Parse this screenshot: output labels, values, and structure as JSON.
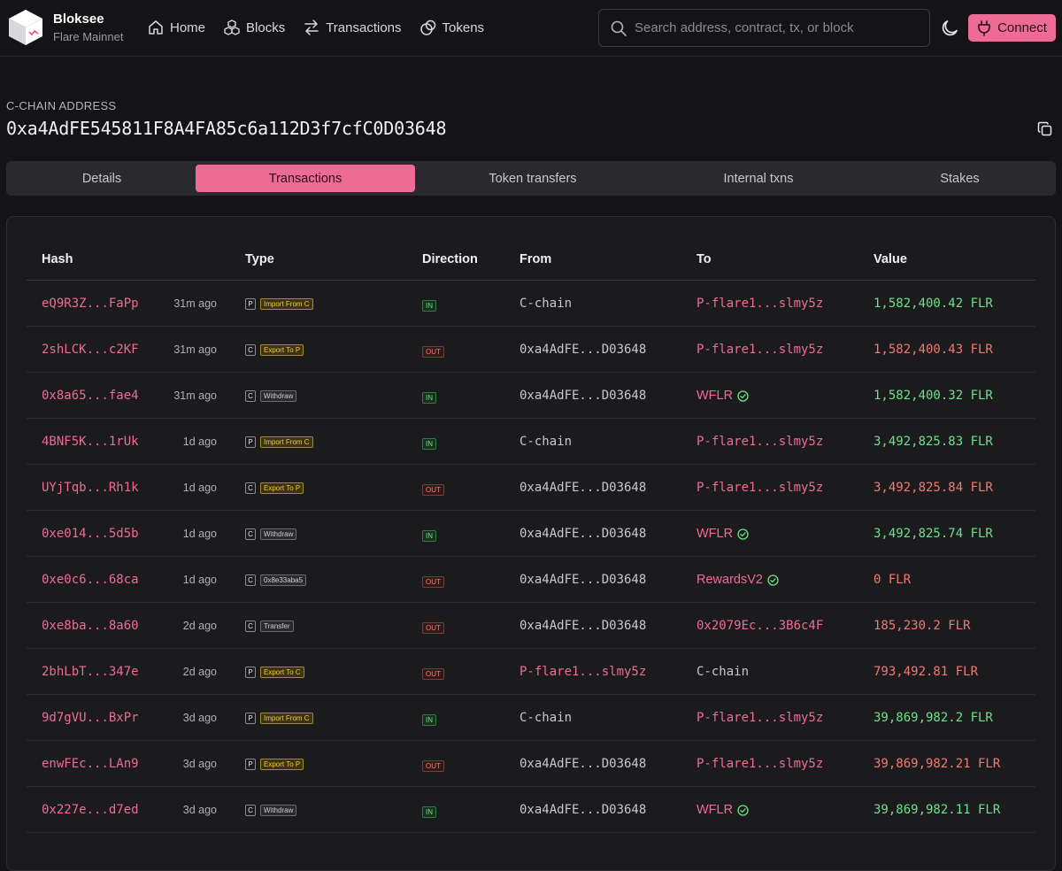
{
  "brand": {
    "name": "Bloksee",
    "network": "Flare Mainnet"
  },
  "nav": [
    {
      "label": "Home",
      "icon": "home-icon"
    },
    {
      "label": "Blocks",
      "icon": "blocks-icon"
    },
    {
      "label": "Transactions",
      "icon": "transactions-icon"
    },
    {
      "label": "Tokens",
      "icon": "tokens-icon"
    }
  ],
  "search": {
    "placeholder": "Search address, contract, tx, or block",
    "value": ""
  },
  "connect_label": "Connect",
  "address": {
    "label": "C-CHAIN ADDRESS",
    "value": "0xa4AdFE545811F8A4FA85c6a112D3f7cfC0D03648"
  },
  "tabs": [
    {
      "label": "Details",
      "active": false
    },
    {
      "label": "Transactions",
      "active": true
    },
    {
      "label": "Token transfers",
      "active": false
    },
    {
      "label": "Internal txns",
      "active": false
    },
    {
      "label": "Stakes",
      "active": false
    }
  ],
  "table": {
    "headers": {
      "hash": "Hash",
      "type": "Type",
      "direction": "Direction",
      "from": "From",
      "to": "To",
      "value": "Value"
    },
    "rows": [
      {
        "hash": "eQ9R3Z...FaPp",
        "age": "31m ago",
        "chain": "P",
        "type": "Import From C",
        "type_style": "gold",
        "direction": "IN",
        "from": "C-chain",
        "from_style": "plain",
        "to": "P-flare1...slmy5z",
        "to_style": "pink",
        "to_verified": false,
        "value": "1,582,400.42 FLR"
      },
      {
        "hash": "2shLCK...c2KF",
        "age": "31m ago",
        "chain": "C",
        "type": "Export To P",
        "type_style": "gold",
        "direction": "OUT",
        "from": "0xa4AdFE...D03648",
        "from_style": "plain",
        "to": "P-flare1...slmy5z",
        "to_style": "pink",
        "to_verified": false,
        "value": "1,582,400.43 FLR"
      },
      {
        "hash": "0x8a65...fae4",
        "age": "31m ago",
        "chain": "C",
        "type": "Withdraw",
        "type_style": "gray",
        "direction": "IN",
        "from": "0xa4AdFE...D03648",
        "from_style": "plain",
        "to": "WFLR",
        "to_style": "pink-sans",
        "to_verified": true,
        "value": "1,582,400.32 FLR"
      },
      {
        "hash": "4BNF5K...1rUk",
        "age": "1d ago",
        "chain": "P",
        "type": "Import From C",
        "type_style": "gold",
        "direction": "IN",
        "from": "C-chain",
        "from_style": "plain",
        "to": "P-flare1...slmy5z",
        "to_style": "pink",
        "to_verified": false,
        "value": "3,492,825.83 FLR"
      },
      {
        "hash": "UYjTqb...Rh1k",
        "age": "1d ago",
        "chain": "C",
        "type": "Export To P",
        "type_style": "gold",
        "direction": "OUT",
        "from": "0xa4AdFE...D03648",
        "from_style": "plain",
        "to": "P-flare1...slmy5z",
        "to_style": "pink",
        "to_verified": false,
        "value": "3,492,825.84 FLR"
      },
      {
        "hash": "0xe014...5d5b",
        "age": "1d ago",
        "chain": "C",
        "type": "Withdraw",
        "type_style": "gray",
        "direction": "IN",
        "from": "0xa4AdFE...D03648",
        "from_style": "plain",
        "to": "WFLR",
        "to_style": "pink-sans",
        "to_verified": true,
        "value": "3,492,825.74 FLR"
      },
      {
        "hash": "0xe0c6...68ca",
        "age": "1d ago",
        "chain": "C",
        "type": "0x8e33aba5",
        "type_style": "gray",
        "direction": "OUT",
        "from": "0xa4AdFE...D03648",
        "from_style": "plain",
        "to": "RewardsV2",
        "to_style": "pink-sans",
        "to_verified": true,
        "value": "0 FLR"
      },
      {
        "hash": "0xe8ba...8a60",
        "age": "2d ago",
        "chain": "C",
        "type": "Transfer",
        "type_style": "gray",
        "direction": "OUT",
        "from": "0xa4AdFE...D03648",
        "from_style": "plain",
        "to": "0x2079Ec...3B6c4F",
        "to_style": "pink",
        "to_verified": false,
        "value": "185,230.2 FLR"
      },
      {
        "hash": "2bhLbT...347e",
        "age": "2d ago",
        "chain": "P",
        "type": "Export To C",
        "type_style": "gold",
        "direction": "OUT",
        "from": "P-flare1...slmy5z",
        "from_style": "pink",
        "to": "C-chain",
        "to_style": "plain",
        "to_verified": false,
        "value": "793,492.81 FLR"
      },
      {
        "hash": "9d7gVU...BxPr",
        "age": "3d ago",
        "chain": "P",
        "type": "Import From C",
        "type_style": "gold",
        "direction": "IN",
        "from": "C-chain",
        "from_style": "plain",
        "to": "P-flare1...slmy5z",
        "to_style": "pink",
        "to_verified": false,
        "value": "39,869,982.2 FLR"
      },
      {
        "hash": "enwFEc...LAn9",
        "age": "3d ago",
        "chain": "P",
        "type": "Export To P",
        "type_style": "gold",
        "direction": "OUT",
        "from": "0xa4AdFE...D03648",
        "from_style": "plain",
        "to": "P-flare1...slmy5z",
        "to_style": "pink",
        "to_verified": false,
        "value": "39,869,982.21 FLR"
      },
      {
        "hash": "0x227e...d7ed",
        "age": "3d ago",
        "chain": "C",
        "type": "Withdraw",
        "type_style": "gray",
        "direction": "IN",
        "from": "0xa4AdFE...D03648",
        "from_style": "plain",
        "to": "WFLR",
        "to_style": "pink-sans",
        "to_verified": true,
        "value": "39,869,982.11 FLR"
      }
    ]
  },
  "colors": {
    "accent": "#ee6b96",
    "in": "#6ee08a",
    "out": "#f07a72",
    "background": "#141416"
  }
}
